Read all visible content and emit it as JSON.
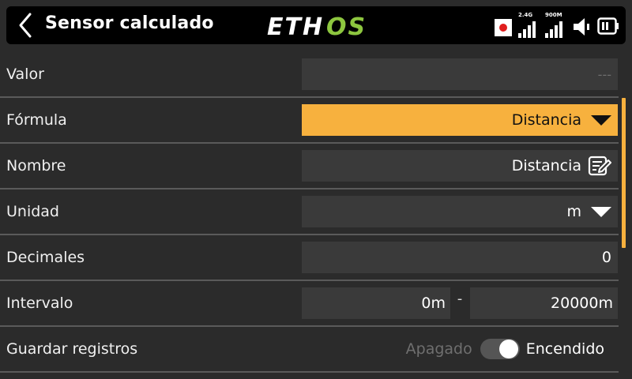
{
  "header": {
    "title": "Sensor calculado",
    "logo": "ETHOS",
    "status": {
      "signal1_label": "2.4G",
      "signal2_label": "900M"
    }
  },
  "rows": {
    "valor": {
      "label": "Valor",
      "value": "---"
    },
    "formula": {
      "label": "Fórmula",
      "value": "Distancia"
    },
    "nombre": {
      "label": "Nombre",
      "value": "Distancia"
    },
    "unidad": {
      "label": "Unidad",
      "value": "m"
    },
    "decimales": {
      "label": "Decimales",
      "value": "0"
    },
    "intervalo": {
      "label": "Intervalo",
      "min": "0m",
      "separator": "-",
      "max": "20000m"
    },
    "guardar": {
      "label": "Guardar registros",
      "off_label": "Apagado",
      "on_label": "Encendido",
      "state": "on"
    }
  },
  "colors": {
    "accent": "#f7b13e",
    "background": "#2b2b2b",
    "field": "#3a3a3a",
    "logo_green": "#8dc63f",
    "record_red": "#e01e1e"
  }
}
